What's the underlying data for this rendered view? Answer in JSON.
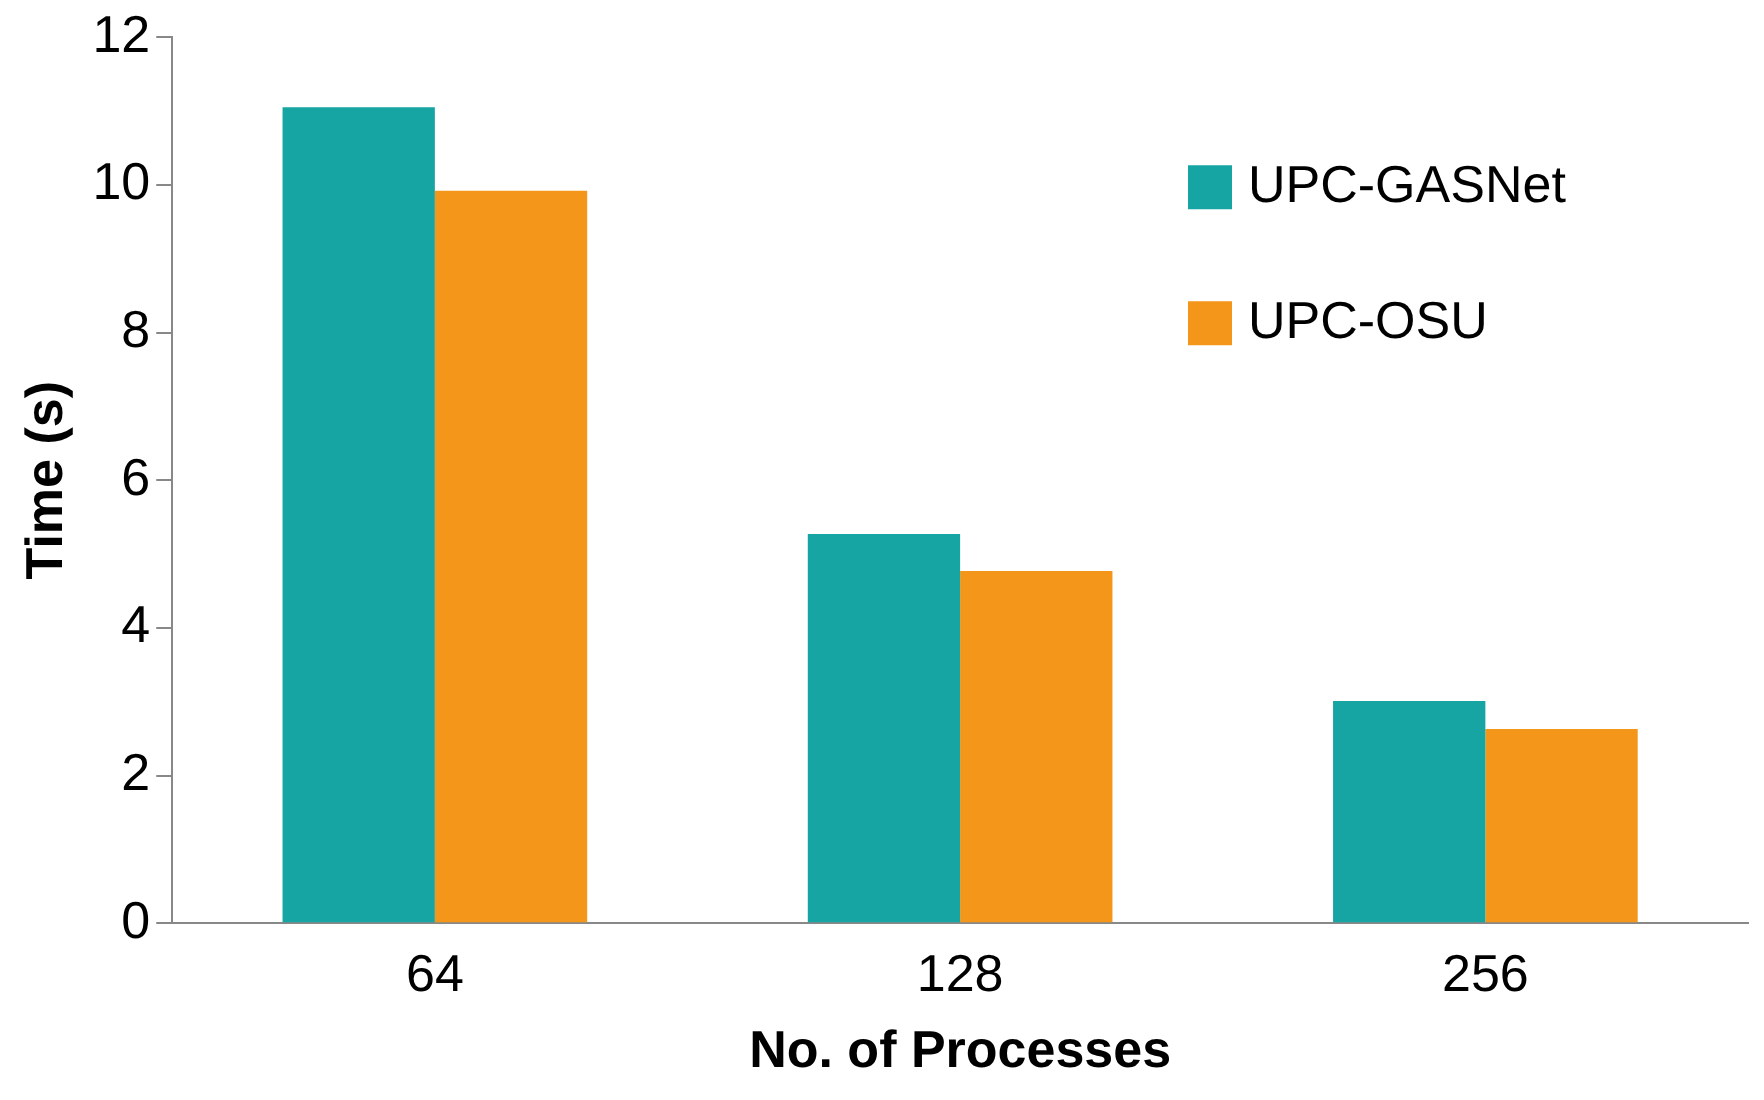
{
  "chart_data": {
    "type": "bar",
    "xlabel": "No. of Processes",
    "ylabel": "Time (s)",
    "categories": [
      "64",
      "128",
      "256"
    ],
    "series": [
      {
        "name": "UPC-GASNet",
        "color": "#17a5a3",
        "values": [
          11.05,
          5.27,
          3.01
        ]
      },
      {
        "name": "UPC-OSU",
        "color": "#f39619",
        "values": [
          9.92,
          4.77,
          2.63
        ]
      }
    ],
    "ylim": [
      0,
      12
    ],
    "yticks": [
      0,
      2,
      4,
      6,
      8,
      10,
      12
    ],
    "grid": false,
    "legend": "top right"
  }
}
